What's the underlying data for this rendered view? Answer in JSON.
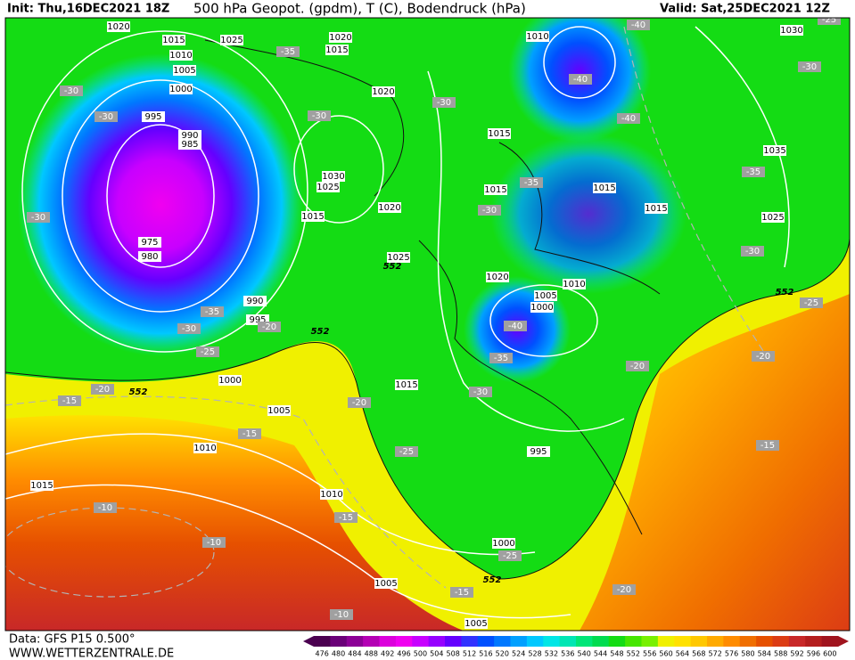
{
  "header": {
    "init": "Init: Thu,16DEC2021 18Z",
    "title": "500 hPa Geopot. (gpdm), T (C), Bodendruck (hPa)",
    "valid": "Valid: Sat,25DEC2021 12Z"
  },
  "footer": {
    "data": "Data: GFS P15 0.500°",
    "site": "WWW.WETTERZENTRALE.DE"
  },
  "legend": {
    "levels": [
      476,
      480,
      484,
      488,
      492,
      496,
      500,
      504,
      508,
      512,
      516,
      520,
      524,
      528,
      532,
      536,
      540,
      544,
      548,
      552,
      556,
      560,
      564,
      568,
      572,
      576,
      580,
      584,
      588,
      592,
      596,
      600
    ],
    "colors": [
      "#4b0050",
      "#6a0078",
      "#8c0096",
      "#b400b4",
      "#dc00dc",
      "#f000f0",
      "#c800ff",
      "#9600ff",
      "#6400ff",
      "#3232ff",
      "#0050ff",
      "#0078ff",
      "#00a0ff",
      "#00c8ff",
      "#00e6e6",
      "#00e6b4",
      "#00e678",
      "#00dc50",
      "#14dc14",
      "#46e600",
      "#78f000",
      "#f0f000",
      "#ffe100",
      "#ffc800",
      "#ffaa00",
      "#ff8c00",
      "#f06e00",
      "#e65000",
      "#dc3c14",
      "#c82828",
      "#b41e1e",
      "#a0141e"
    ]
  },
  "map": {
    "pressure_labels": [
      "1020",
      "1015",
      "1010",
      "1005",
      "1000",
      "995",
      "990",
      "985",
      "975",
      "980",
      "1025",
      "1020",
      "1015",
      "1020",
      "1030",
      "1025",
      "1015",
      "1020",
      "1025",
      "1010",
      "1030",
      "1015",
      "1015",
      "1015",
      "1015",
      "1035",
      "1025",
      "1020",
      "1010",
      "1005",
      "1000",
      "990",
      "995",
      "1000",
      "1015",
      "1005",
      "1010",
      "995",
      "1015",
      "1010",
      "1000",
      "1005",
      "1005"
    ],
    "temperature_labels": [
      "-25",
      "-40",
      "-35",
      "-30",
      "-40",
      "-30",
      "-30",
      "-30",
      "-30",
      "-40",
      "-35",
      "-35",
      "-30",
      "-30",
      "-30",
      "-25",
      "-35",
      "-30",
      "-20",
      "-40",
      "-25",
      "-35",
      "-20",
      "-20",
      "-30",
      "-20",
      "-15",
      "-20",
      "-15",
      "-25",
      "-15",
      "-10",
      "-15",
      "-10",
      "-25",
      "-15",
      "-20",
      "-10"
    ],
    "geopotential_labels": [
      "552",
      "552",
      "552",
      "552",
      "552"
    ]
  }
}
